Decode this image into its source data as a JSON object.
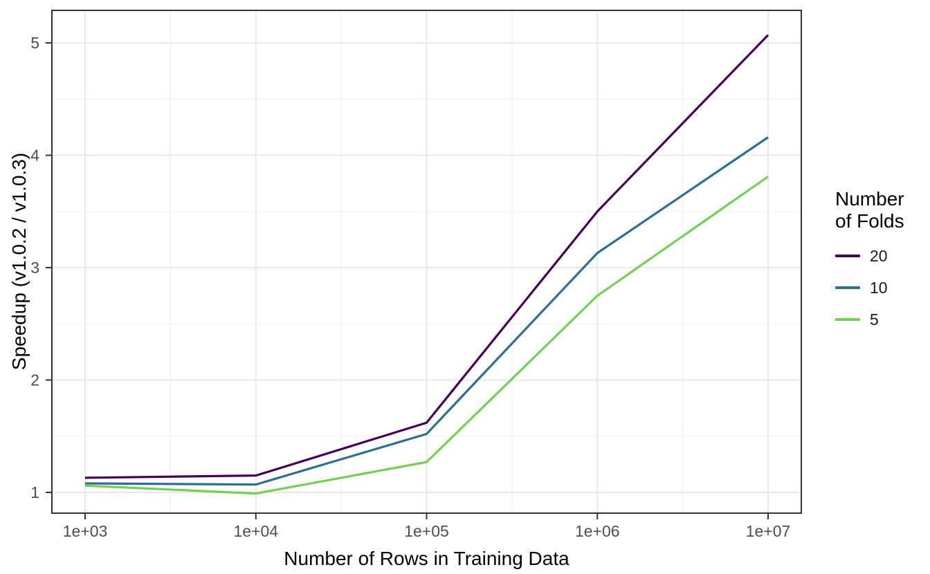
{
  "chart_data": {
    "type": "line",
    "title": "",
    "xlabel": "Number of Rows in Training Data",
    "ylabel": "Speedup (v1.0.2 / v1.0.3)",
    "x_scale": "log10",
    "x": [
      1000,
      10000,
      100000,
      1000000,
      10000000
    ],
    "x_tick_labels": [
      "1e+03",
      "1e+04",
      "1e+05",
      "1e+06",
      "1e+07"
    ],
    "y_ticks": [
      1,
      2,
      3,
      4,
      5
    ],
    "y_tick_labels": [
      "1",
      "2",
      "3",
      "4",
      "5"
    ],
    "ylim": [
      0.82,
      5.29
    ],
    "grid": "major and minor gridlines, light gray on white panel",
    "legend": {
      "title": "Number\nof Folds",
      "position": "right"
    },
    "series": [
      {
        "name": "20",
        "color": "#440154",
        "values": [
          1.13,
          1.15,
          1.62,
          3.5,
          5.07
        ]
      },
      {
        "name": "10",
        "color": "#2D708E",
        "values": [
          1.08,
          1.07,
          1.52,
          3.13,
          4.16
        ]
      },
      {
        "name": "5",
        "color": "#73D055",
        "values": [
          1.06,
          0.99,
          1.27,
          2.75,
          3.81
        ]
      }
    ],
    "colors": {
      "axis_border": "#333333",
      "grid_major": "#E8E8E8",
      "grid_minor": "#EDEDED",
      "tick_text": "#4D4D4D",
      "title_text": "#000000",
      "background": "#FFFFFF"
    }
  }
}
